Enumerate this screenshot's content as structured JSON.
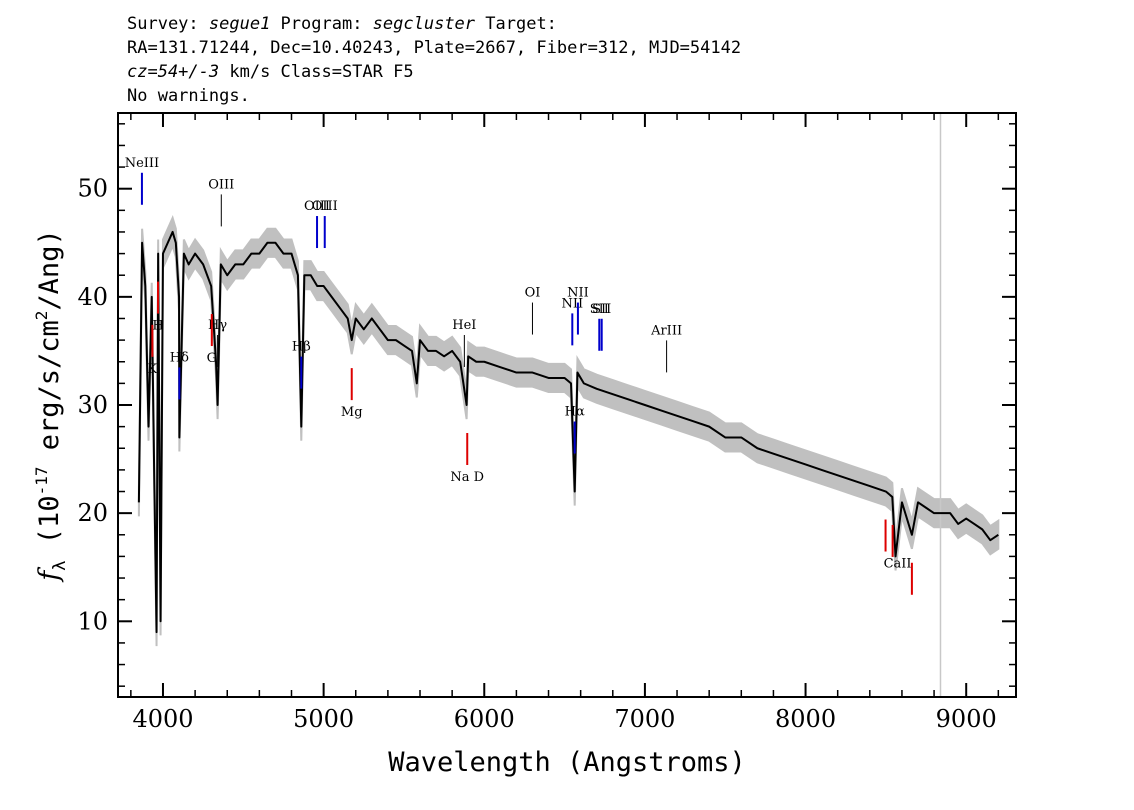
{
  "header": {
    "survey_label": "Survey: ",
    "survey": "segue1",
    "program_label": " Program: ",
    "program": "segcluster",
    "target_label": " Target:",
    "line2": "RA=131.71244, Dec=10.40243, Plate=2667, Fiber=312, MJD=54142",
    "cz": "cz=54+/-3",
    "cz_rest": " km/s Class=STAR F5",
    "line4": "No warnings."
  },
  "chart_data": {
    "type": "line",
    "xlabel": "Wavelength (Angstroms)",
    "ylabel_main": "f",
    "ylabel_sub": "λ",
    "ylabel_rest": " (10",
    "ylabel_exp": "-17",
    "ylabel_unit": " erg/s/cm",
    "ylabel_exp2": "2",
    "ylabel_end": "/Ang)",
    "xlim": [
      3720,
      9310
    ],
    "ylim": [
      3,
      57
    ],
    "x_ticks": [
      4000,
      5000,
      6000,
      7000,
      8000,
      9000
    ],
    "x_tick_labels": [
      "4000",
      "5000",
      "6000",
      "7000",
      "8000",
      "9000"
    ],
    "y_ticks": [
      10,
      20,
      30,
      40,
      50
    ],
    "y_tick_labels": [
      "10",
      "20",
      "30",
      "40",
      "50"
    ],
    "vertical_marker_x": 8840,
    "colors": {
      "spectrum": "#000000",
      "error_band": "#c0c0c0",
      "emission": "#0000cc",
      "absorption": "#dd0000",
      "neutral": "#000000",
      "marker": "#c8c8c8"
    },
    "series": [
      {
        "x": [
          3850,
          3870,
          3890,
          3910,
          3930,
          3945,
          3960,
          3970,
          3985,
          4000,
          4030,
          4060,
          4080,
          4100,
          4102,
          4130,
          4160,
          4200,
          4250,
          4300,
          4330,
          4340,
          4360,
          4400,
          4450,
          4500,
          4550,
          4600,
          4650,
          4700,
          4750,
          4800,
          4840,
          4861,
          4880,
          4920,
          4960,
          5000,
          5050,
          5100,
          5150,
          5175,
          5200,
          5250,
          5300,
          5350,
          5400,
          5450,
          5500,
          5550,
          5580,
          5600,
          5650,
          5700,
          5750,
          5800,
          5850,
          5890,
          5900,
          5950,
          6000,
          6100,
          6200,
          6300,
          6400,
          6500,
          6540,
          6563,
          6580,
          6620,
          6700,
          6800,
          6900,
          7000,
          7100,
          7200,
          7300,
          7400,
          7500,
          7600,
          7700,
          7800,
          7900,
          8000,
          8100,
          8200,
          8300,
          8400,
          8500,
          8540,
          8560,
          8600,
          8662,
          8700,
          8750,
          8800,
          8850,
          8900,
          8950,
          9000,
          9050,
          9100,
          9150,
          9200
        ],
        "y": [
          21,
          45,
          41,
          28,
          40,
          24,
          9,
          44,
          10,
          44,
          45,
          46,
          45,
          40,
          27,
          44,
          43,
          44,
          43,
          41,
          34,
          30,
          43,
          42,
          43,
          43,
          44,
          44,
          45,
          45,
          44,
          44,
          42,
          28,
          42,
          42,
          41,
          41,
          40,
          39,
          38,
          36,
          38,
          37,
          38,
          37,
          36,
          36,
          35.5,
          35,
          32,
          36,
          35,
          35,
          34.5,
          35,
          34,
          30,
          34.5,
          34,
          34,
          33.5,
          33,
          33,
          32.5,
          32.5,
          32,
          22,
          33,
          32,
          31.5,
          31,
          30.5,
          30,
          29.5,
          29,
          28.5,
          28,
          27,
          27,
          26,
          25.5,
          25,
          24.5,
          24,
          23.5,
          23,
          22.5,
          22,
          21.5,
          16,
          21,
          18,
          21,
          20.5,
          20,
          20,
          20,
          19,
          19.5,
          19,
          18.5,
          17.5,
          18
        ]
      }
    ],
    "emission_lines": [
      {
        "name": "NeIII",
        "x": 3869,
        "color": "#0000cc"
      },
      {
        "name": "Hδ",
        "x": 4102,
        "color": "#0000cc"
      },
      {
        "name": "Hγ",
        "x": 4340,
        "color": "#000000"
      },
      {
        "name": "OIII",
        "x": 4363,
        "color": "#000000"
      },
      {
        "name": "Hβ",
        "x": 4861,
        "color": "#0000cc"
      },
      {
        "name": "OIII",
        "x": 4959,
        "color": "#0000cc"
      },
      {
        "name": "OIII",
        "x": 5007,
        "color": "#0000cc"
      },
      {
        "name": "HeI",
        "x": 5876,
        "color": "#000000"
      },
      {
        "name": "OI",
        "x": 6300,
        "color": "#000000"
      },
      {
        "name": "NII",
        "x": 6548,
        "color": "#0000cc"
      },
      {
        "name": "Hα",
        "x": 6563,
        "color": "#0000cc"
      },
      {
        "name": "NII",
        "x": 6583,
        "color": "#0000cc"
      },
      {
        "name": "SII",
        "x": 6716,
        "color": "#0000cc"
      },
      {
        "name": "SII",
        "x": 6731,
        "color": "#0000cc"
      },
      {
        "name": "ArIII",
        "x": 7135,
        "color": "#000000"
      }
    ],
    "absorption_lines": [
      {
        "name": "K",
        "x": 3934,
        "color": "#dd0000"
      },
      {
        "name": "H",
        "x": 3969,
        "color": "#dd0000"
      },
      {
        "name": "G",
        "x": 4304,
        "color": "#dd0000"
      },
      {
        "name": "Mg",
        "x": 5175,
        "color": "#dd0000"
      },
      {
        "name": "Na D",
        "x": 5894,
        "color": "#dd0000"
      },
      {
        "name": "CaII",
        "x": 8498,
        "color": "#dd0000"
      },
      {
        "name": "CaII",
        "x": 8542,
        "color": "#dd0000"
      },
      {
        "name": "CaII",
        "x": 8662,
        "color": "#dd0000"
      }
    ]
  }
}
